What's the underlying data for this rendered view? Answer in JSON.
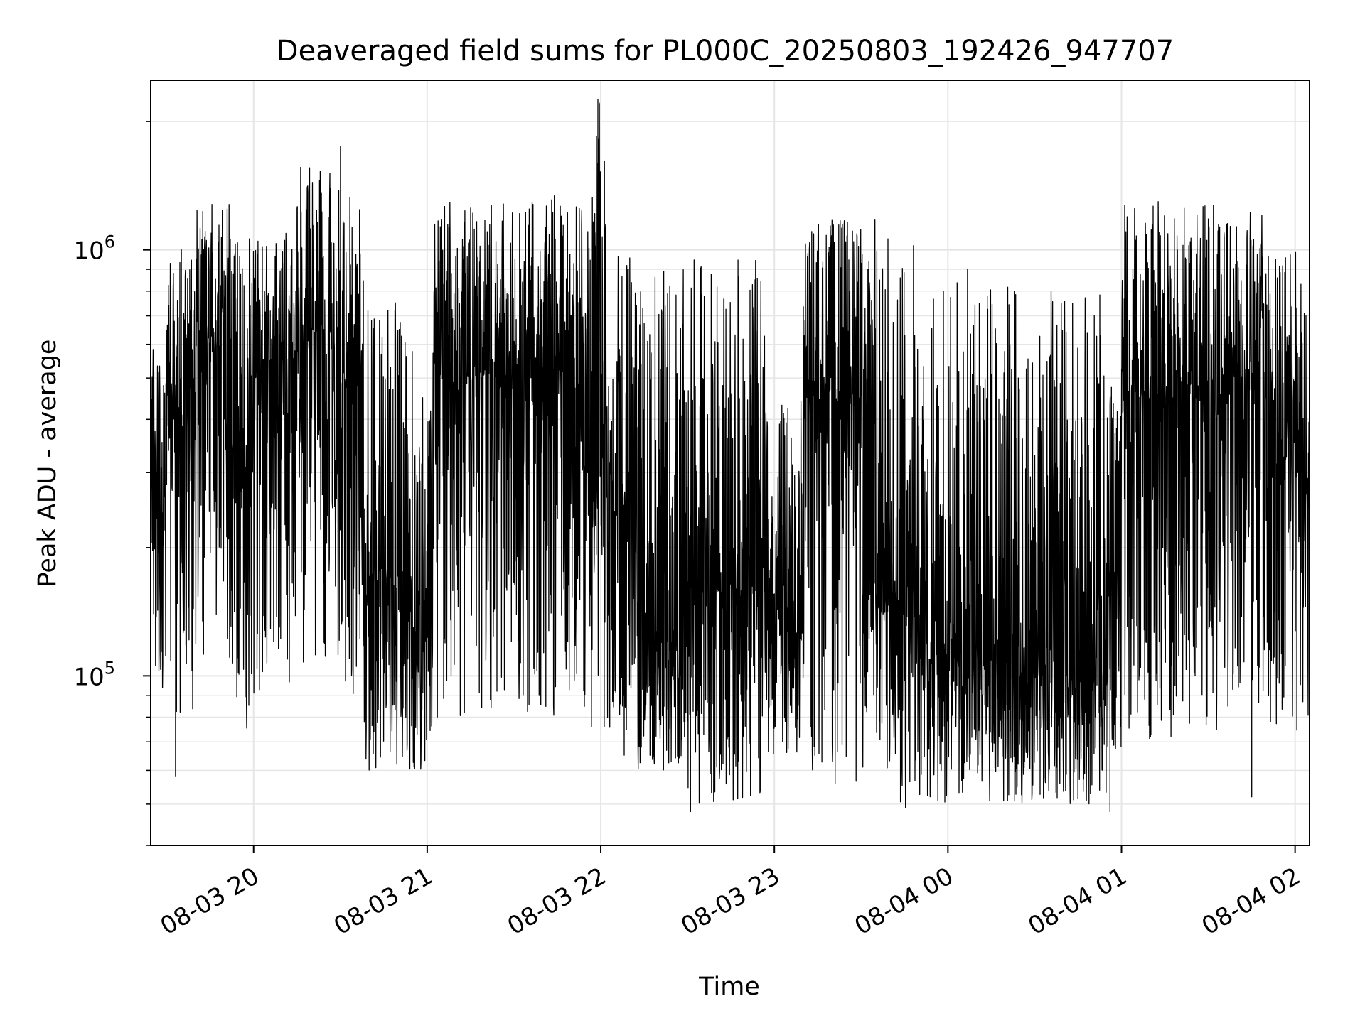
{
  "chart_data": {
    "type": "line",
    "title": "Deaveraged field sums for PL000C_20250803_192426_947707",
    "xlabel": "Time",
    "ylabel": "Peak ADU - average",
    "x_scale": "time",
    "y_scale": "log",
    "x_range": [
      "2025-08-03 19:24:26",
      "2025-08-04 02:05:00"
    ],
    "ylim": [
      40000,
      2500000
    ],
    "x_ticks": [
      {
        "time": "2025-08-03 20:00",
        "label": "08-03 20"
      },
      {
        "time": "2025-08-03 21:00",
        "label": "08-03 21"
      },
      {
        "time": "2025-08-03 22:00",
        "label": "08-03 22"
      },
      {
        "time": "2025-08-03 23:00",
        "label": "08-03 23"
      },
      {
        "time": "2025-08-04 00:00",
        "label": "08-04 00"
      },
      {
        "time": "2025-08-04 01:00",
        "label": "08-04 01"
      },
      {
        "time": "2025-08-04 02:00",
        "label": "08-04 02"
      }
    ],
    "y_ticks": [
      {
        "value": 100000,
        "base": "10",
        "exp": "5"
      },
      {
        "value": 1000000,
        "base": "10",
        "exp": "6"
      }
    ],
    "grid": true,
    "series_color": "#000000",
    "segments": [
      {
        "start": "2025-08-03 19:24",
        "end": "2025-08-03 19:30",
        "low": 90000,
        "high": 600000,
        "mid": 300000
      },
      {
        "start": "2025-08-03 19:30",
        "end": "2025-08-03 19:40",
        "low": 80000,
        "high": 1000000,
        "mid": 400000
      },
      {
        "start": "2025-08-03 19:40",
        "end": "2025-08-03 19:52",
        "low": 110000,
        "high": 1300000,
        "mid": 600000
      },
      {
        "start": "2025-08-03 19:52",
        "end": "2025-08-03 20:00",
        "low": 75000,
        "high": 1100000,
        "mid": 350000
      },
      {
        "start": "2025-08-03 20:00",
        "end": "2025-08-03 20:15",
        "low": 90000,
        "high": 1100000,
        "mid": 550000
      },
      {
        "start": "2025-08-03 20:15",
        "end": "2025-08-03 20:30",
        "low": 100000,
        "high": 1600000,
        "mid": 650000
      },
      {
        "start": "2025-08-03 20:30",
        "end": "2025-08-03 20:38",
        "low": 90000,
        "high": 1400000,
        "mid": 500000
      },
      {
        "start": "2025-08-03 20:38",
        "end": "2025-08-03 20:55",
        "low": 60000,
        "high": 800000,
        "mid": 170000
      },
      {
        "start": "2025-08-03 20:55",
        "end": "2025-08-03 21:02",
        "low": 60000,
        "high": 550000,
        "mid": 130000
      },
      {
        "start": "2025-08-03 21:02",
        "end": "2025-08-03 21:30",
        "low": 75000,
        "high": 1300000,
        "mid": 500000
      },
      {
        "start": "2025-08-03 21:30",
        "end": "2025-08-03 21:58",
        "low": 75000,
        "high": 1350000,
        "mid": 500000
      },
      {
        "start": "2025-08-03 21:58",
        "end": "2025-08-03 22:02",
        "low": 70000,
        "high": 2300000,
        "mid": 400000
      },
      {
        "start": "2025-08-03 22:02",
        "end": "2025-08-03 22:12",
        "low": 65000,
        "high": 1000000,
        "mid": 250000
      },
      {
        "start": "2025-08-03 22:12",
        "end": "2025-08-03 22:30",
        "low": 60000,
        "high": 900000,
        "mid": 120000
      },
      {
        "start": "2025-08-03 22:30",
        "end": "2025-08-03 22:57",
        "low": 50000,
        "high": 950000,
        "mid": 160000
      },
      {
        "start": "2025-08-03 22:57",
        "end": "2025-08-03 23:10",
        "low": 65000,
        "high": 450000,
        "mid": 140000
      },
      {
        "start": "2025-08-03 23:10",
        "end": "2025-08-03 23:35",
        "low": 55000,
        "high": 1200000,
        "mid": 450000
      },
      {
        "start": "2025-08-03 23:35",
        "end": "2025-08-03 23:50",
        "low": 48000,
        "high": 1100000,
        "mid": 140000
      },
      {
        "start": "2025-08-03 23:50",
        "end": "2025-08-04 00:25",
        "low": 50000,
        "high": 900000,
        "mid": 110000
      },
      {
        "start": "2025-08-04 00:25",
        "end": "2025-08-04 00:55",
        "low": 50000,
        "high": 800000,
        "mid": 100000
      },
      {
        "start": "2025-08-04 00:55",
        "end": "2025-08-04 01:00",
        "low": 48000,
        "high": 500000,
        "mid": 150000
      },
      {
        "start": "2025-08-04 01:00",
        "end": "2025-08-04 01:35",
        "low": 70000,
        "high": 1300000,
        "mid": 450000
      },
      {
        "start": "2025-08-04 01:35",
        "end": "2025-08-04 01:50",
        "low": 70000,
        "high": 1300000,
        "mid": 500000
      },
      {
        "start": "2025-08-04 01:50",
        "end": "2025-08-04 02:05",
        "low": 55000,
        "high": 1000000,
        "mid": 300000
      }
    ],
    "spikes": [
      {
        "time": "2025-08-03 19:35",
        "value": 1000000
      },
      {
        "time": "2025-08-03 19:33",
        "value": 58000
      },
      {
        "time": "2025-08-03 20:30",
        "value": 1750000
      },
      {
        "time": "2025-08-03 21:59",
        "value": 2250000
      },
      {
        "time": "2025-08-03 22:31",
        "value": 48000
      },
      {
        "time": "2025-08-04 00:56",
        "value": 48000
      },
      {
        "time": "2025-08-04 01:45",
        "value": 52000
      }
    ]
  }
}
